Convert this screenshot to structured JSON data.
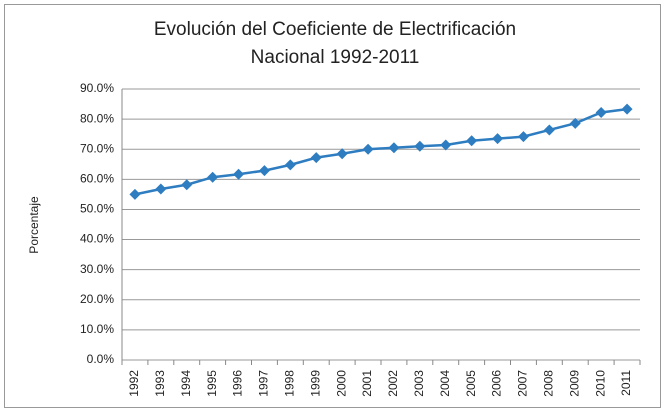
{
  "chart_data": {
    "type": "line",
    "title": [
      "Evolución del Coeficiente de Electrificación",
      "Nacional 1992-2011"
    ],
    "y_label": "Porcentaje",
    "categories": [
      "1992",
      "1993",
      "1994",
      "1995",
      "1996",
      "1997",
      "1998",
      "1999",
      "2000",
      "2001",
      "2002",
      "2003",
      "2004",
      "2005",
      "2006",
      "2007",
      "2008",
      "2009",
      "2010",
      "2011"
    ],
    "values": [
      55.0,
      56.8,
      58.2,
      60.7,
      61.7,
      62.9,
      64.8,
      67.2,
      68.5,
      70.0,
      70.5,
      71.0,
      71.4,
      72.8,
      73.5,
      74.2,
      76.4,
      78.6,
      82.2,
      83.3
    ],
    "color": "#2e7dc1",
    "ylim": [
      0,
      90
    ],
    "yticks": [
      {
        "value": 0,
        "label": "0.0%"
      },
      {
        "value": 10,
        "label": "10.0%"
      },
      {
        "value": 20,
        "label": "20.0%"
      },
      {
        "value": 30,
        "label": "30.0%"
      },
      {
        "value": 40,
        "label": "40.0%"
      },
      {
        "value": 50,
        "label": "50.0%"
      },
      {
        "value": 60,
        "label": "60.0%"
      },
      {
        "value": 70,
        "label": "70.0%"
      },
      {
        "value": 80,
        "label": "80.0%"
      },
      {
        "value": 90,
        "label": "90.0%"
      }
    ],
    "grid": true
  }
}
